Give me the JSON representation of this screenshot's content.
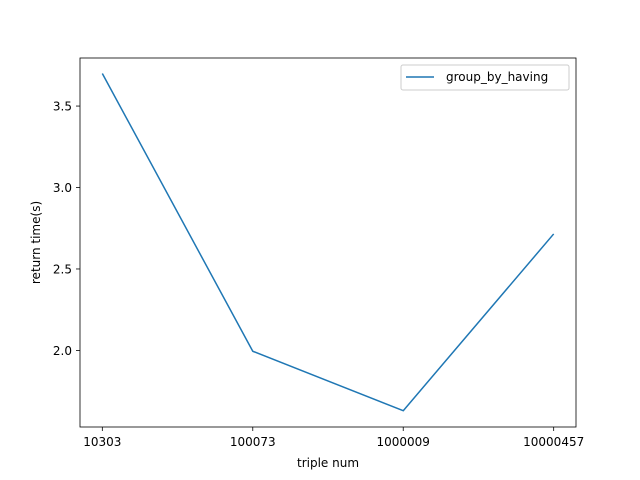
{
  "chart_data": {
    "type": "line",
    "categories": [
      "10303",
      "100073",
      "1000009",
      "10000457"
    ],
    "series": [
      {
        "name": "group_by_having",
        "values": [
          3.7,
          1.995,
          1.63,
          2.715
        ],
        "color": "#1f77b4"
      }
    ],
    "xlabel": "triple num",
    "ylabel": "return time(s)",
    "ylim": [
      1.53,
      3.795
    ],
    "yticks": [
      2.0,
      2.5,
      3.0,
      3.5
    ],
    "ytick_labels": [
      "2.0",
      "2.5",
      "3.0",
      "3.5"
    ],
    "legend": "top-right",
    "grid": false
  }
}
